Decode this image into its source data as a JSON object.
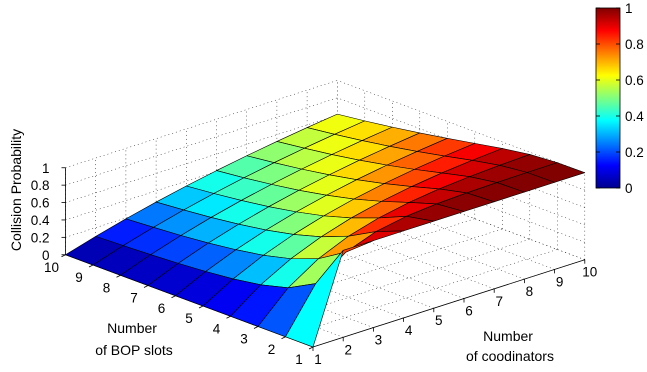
{
  "chart_data": {
    "type": "surface",
    "title": "",
    "xlabel": [
      "Number",
      "of coodinators"
    ],
    "ylabel": [
      "Number",
      "of BOP slots"
    ],
    "zlabel": "Collision Probability",
    "x": [
      1,
      2,
      3,
      4,
      5,
      6,
      7,
      8,
      9,
      10
    ],
    "y": [
      1,
      2,
      3,
      4,
      5,
      6,
      7,
      8,
      9,
      10
    ],
    "x_ticks": [
      "1",
      "2",
      "3",
      "4",
      "5",
      "6",
      "7",
      "8",
      "9",
      "10"
    ],
    "y_ticks": [
      "1",
      "2",
      "3",
      "4",
      "5",
      "6",
      "7",
      "8",
      "9",
      "10"
    ],
    "z_ticks": [
      "0",
      "0.2",
      "0.4",
      "0.6",
      "0.8",
      "1"
    ],
    "zlim": [
      0,
      1
    ],
    "z_note": "z[i][j] = collision probability with y[i] BOP slots and x[j] coordinators",
    "z": [
      [
        0,
        1,
        1,
        1,
        1,
        1,
        1,
        1,
        1,
        1
      ],
      [
        0,
        0.5,
        0.75,
        0.875,
        0.938,
        0.969,
        0.984,
        0.992,
        0.996,
        0.998
      ],
      [
        0,
        0.333,
        0.556,
        0.704,
        0.802,
        0.868,
        0.912,
        0.941,
        0.961,
        0.974
      ],
      [
        0,
        0.25,
        0.438,
        0.578,
        0.684,
        0.763,
        0.822,
        0.867,
        0.9,
        0.925
      ],
      [
        0,
        0.2,
        0.36,
        0.488,
        0.59,
        0.672,
        0.738,
        0.79,
        0.832,
        0.866
      ],
      [
        0,
        0.167,
        0.306,
        0.421,
        0.518,
        0.598,
        0.665,
        0.721,
        0.767,
        0.806
      ],
      [
        0,
        0.143,
        0.265,
        0.37,
        0.46,
        0.537,
        0.603,
        0.66,
        0.708,
        0.75
      ],
      [
        0,
        0.125,
        0.234,
        0.33,
        0.414,
        0.487,
        0.551,
        0.607,
        0.656,
        0.699
      ],
      [
        0,
        0.111,
        0.21,
        0.298,
        0.376,
        0.445,
        0.507,
        0.562,
        0.61,
        0.653
      ],
      [
        0,
        0.1,
        0.19,
        0.271,
        0.344,
        0.41,
        0.469,
        0.522,
        0.57,
        0.613
      ]
    ],
    "colormap": "jet",
    "colorbar": {
      "ticks": [
        "0",
        "0.2",
        "0.4",
        "0.6",
        "0.8",
        "1"
      ],
      "range": [
        0,
        1
      ]
    },
    "grid": true
  }
}
